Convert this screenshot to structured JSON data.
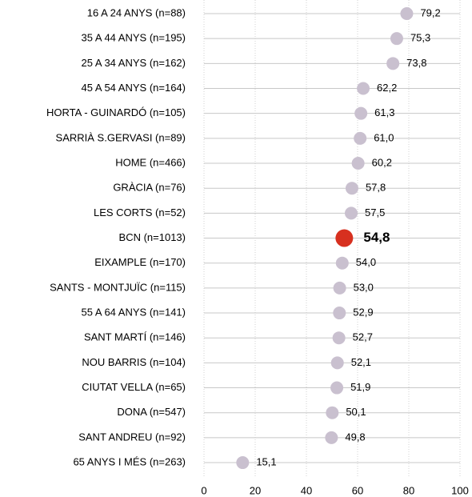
{
  "chart_data": {
    "type": "dot",
    "categories": [
      "16 A 24 ANYS (n=88)",
      "35 A 44 ANYS (n=195)",
      "25 A 34 ANYS (n=162)",
      "45 A 54 ANYS (n=164)",
      "HORTA - GUINARDÓ (n=105)",
      "SARRIÀ  S.GERVASI (n=89)",
      "HOME (n=466)",
      "GRÀCIA (n=76)",
      "LES CORTS (n=52)",
      "BCN (n=1013)",
      "EIXAMPLE (n=170)",
      "SANTS - MONTJUÏC (n=115)",
      "55 A 64 ANYS (n=141)",
      "SANT MARTÍ (n=146)",
      "NOU BARRIS (n=104)",
      "CIUTAT VELLA (n=65)",
      "DONA (n=547)",
      "SANT ANDREU (n=92)",
      "65 ANYS I MÉS (n=263)"
    ],
    "values": [
      79.2,
      75.3,
      73.8,
      62.2,
      61.3,
      61.0,
      60.2,
      57.8,
      57.5,
      54.8,
      54.0,
      53.0,
      52.9,
      52.7,
      52.1,
      51.9,
      50.1,
      49.8,
      15.1
    ],
    "value_labels": [
      "79,2",
      "75,3",
      "73,8",
      "62,2",
      "61,3",
      "61,0",
      "60,2",
      "57,8",
      "57,5",
      "54,8",
      "54,0",
      "53,0",
      "52,9",
      "52,7",
      "52,1",
      "51,9",
      "50,1",
      "49,8",
      "15,1"
    ],
    "color": "#c9c0cf",
    "highlight_color": "#d7301f",
    "highlight_index": 9,
    "xlim": [
      0,
      100
    ],
    "xticks": [
      0,
      20,
      40,
      60,
      80,
      100
    ],
    "grid": true
  }
}
